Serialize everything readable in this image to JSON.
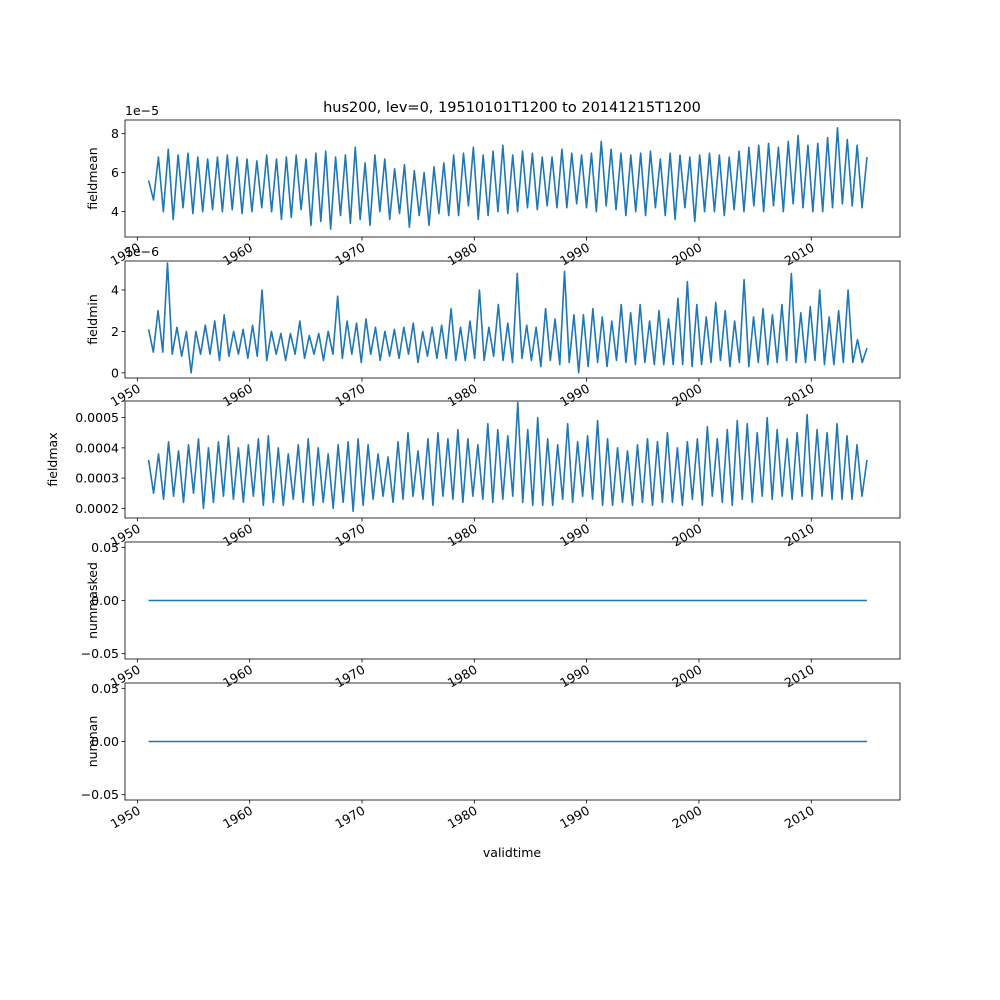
{
  "title": "hus200, lev=0, 19510101T1200 to 20141215T1200",
  "xlabel": "validtime",
  "colors": {
    "line": "#1f77b4",
    "axes": "#000000",
    "background": "#ffffff"
  },
  "chart_data": [
    {
      "type": "line",
      "ylabel": "fieldmean",
      "offset_text": "1e−5",
      "xlim": [
        1948.9,
        2017.9
      ],
      "ylim": [
        2.7,
        8.7
      ],
      "yticks": [
        4,
        6,
        8
      ],
      "yticklabels": [
        "4",
        "6",
        "8"
      ],
      "xticks": [
        1950,
        1960,
        1970,
        1980,
        1990,
        2000,
        2010
      ],
      "xticklabels": [
        "1950",
        "1960",
        "1970",
        "1980",
        "1990",
        "2000",
        "2010"
      ],
      "series": [
        {
          "x_range": [
            1951.0,
            2014.96
          ],
          "y": [
            5.6,
            4.6,
            6.8,
            4.0,
            7.2,
            3.6,
            6.9,
            4.2,
            7.0,
            3.9,
            6.8,
            4.0,
            6.7,
            4.1,
            6.8,
            4.0,
            6.9,
            4.1,
            6.8,
            3.9,
            6.7,
            4.0,
            6.6,
            4.2,
            6.9,
            4.0,
            6.7,
            3.6,
            6.8,
            3.7,
            6.9,
            4.1,
            6.7,
            3.3,
            7.0,
            3.5,
            7.1,
            3.1,
            6.8,
            3.8,
            6.9,
            3.4,
            7.3,
            3.6,
            6.5,
            3.3,
            6.9,
            4.0,
            6.7,
            3.6,
            6.2,
            3.9,
            6.4,
            3.2,
            6.1,
            3.8,
            6.0,
            3.3,
            6.3,
            3.9,
            6.5,
            3.8,
            6.9,
            3.8,
            7.0,
            4.3,
            7.3,
            3.6,
            6.9,
            3.8,
            7.1,
            4.0,
            7.4,
            3.9,
            6.9,
            4.0,
            7.1,
            4.2,
            7.0,
            4.1,
            6.8,
            4.3,
            6.8,
            4.2,
            7.2,
            4.2,
            7.0,
            4.4,
            6.9,
            4.2,
            7.0,
            4.0,
            7.6,
            4.3,
            7.2,
            4.1,
            7.0,
            3.8,
            6.9,
            4.0,
            7.0,
            3.8,
            7.1,
            4.2,
            6.7,
            3.8,
            7.0,
            3.6,
            6.9,
            4.2,
            6.8,
            3.5,
            6.9,
            4.0,
            7.0,
            4.0,
            6.9,
            3.8,
            6.8,
            4.1,
            7.1,
            4.0,
            7.3,
            4.3,
            7.4,
            4.0,
            7.5,
            4.3,
            7.3,
            4.0,
            7.6,
            4.4,
            7.9,
            4.2,
            7.4,
            4.0,
            7.5,
            4.0,
            7.8,
            4.2,
            8.3,
            4.4,
            7.7,
            4.3,
            7.4,
            4.2,
            6.8
          ]
        }
      ]
    },
    {
      "type": "line",
      "ylabel": "fieldmin",
      "offset_text": "1e−6",
      "xlim": [
        1948.9,
        2017.9
      ],
      "ylim": [
        -0.25,
        5.4
      ],
      "yticks": [
        0,
        2,
        4
      ],
      "yticklabels": [
        "0",
        "2",
        "4"
      ],
      "xticks": [
        1950,
        1960,
        1970,
        1980,
        1990,
        2000,
        2010
      ],
      "xticklabels": [
        "1950",
        "1960",
        "1970",
        "1980",
        "1990",
        "2000",
        "2010"
      ],
      "series": [
        {
          "x_range": [
            1951.0,
            2014.96
          ],
          "y": [
            2.1,
            1.0,
            3.0,
            1.0,
            5.3,
            0.9,
            2.2,
            0.8,
            2.0,
            0.0,
            2.0,
            0.9,
            2.3,
            0.9,
            2.5,
            0.6,
            2.8,
            0.8,
            2.0,
            0.9,
            2.1,
            0.7,
            2.3,
            0.8,
            4.0,
            0.6,
            2.0,
            0.9,
            1.9,
            0.6,
            1.9,
            0.9,
            2.5,
            0.7,
            1.8,
            0.9,
            1.9,
            0.6,
            2.0,
            0.9,
            3.7,
            0.7,
            2.5,
            0.9,
            2.4,
            0.5,
            2.6,
            0.9,
            2.2,
            0.6,
            2.0,
            0.8,
            2.1,
            0.7,
            2.2,
            0.9,
            2.4,
            0.5,
            2.0,
            0.8,
            2.2,
            0.7,
            2.3,
            0.7,
            3.1,
            0.6,
            2.2,
            0.6,
            2.5,
            0.7,
            4.0,
            0.6,
            2.2,
            0.8,
            3.3,
            0.6,
            2.4,
            0.5,
            4.8,
            0.7,
            2.3,
            0.6,
            2.2,
            0.3,
            3.1,
            0.6,
            2.6,
            0.4,
            4.9,
            0.5,
            2.8,
            0.0,
            2.8,
            0.3,
            3.1,
            0.5,
            2.7,
            0.3,
            2.5,
            0.6,
            3.3,
            0.5,
            2.9,
            0.4,
            3.3,
            0.5,
            2.5,
            0.4,
            3.0,
            0.4,
            2.6,
            0.4,
            3.6,
            0.4,
            4.4,
            0.3,
            3.3,
            0.4,
            2.7,
            0.5,
            3.4,
            0.6,
            3.0,
            0.3,
            2.5,
            0.5,
            4.5,
            0.3,
            2.7,
            0.5,
            3.1,
            0.4,
            2.8,
            0.5,
            3.3,
            0.6,
            4.8,
            0.5,
            2.9,
            0.5,
            3.2,
            0.6,
            4.0,
            0.4,
            2.7,
            0.4,
            3.0,
            0.5,
            4.0,
            0.5,
            1.6,
            0.5,
            1.2
          ]
        }
      ]
    },
    {
      "type": "line",
      "ylabel": "fieldmax",
      "offset_text": "",
      "xlim": [
        1948.9,
        2017.9
      ],
      "ylim": [
        0.000168,
        0.000555
      ],
      "yticks": [
        0.0002,
        0.0003,
        0.0004,
        0.0005
      ],
      "yticklabels": [
        "0.0002",
        "0.0003",
        "0.0004",
        "0.0005"
      ],
      "xticks": [
        1950,
        1960,
        1970,
        1980,
        1990,
        2000,
        2010
      ],
      "xticklabels": [
        "1950",
        "1960",
        "1970",
        "1980",
        "1990",
        "2000",
        "2010"
      ],
      "series": [
        {
          "x_range": [
            1951.0,
            2014.96
          ],
          "y": [
            0.00036,
            0.00025,
            0.00038,
            0.00023,
            0.00042,
            0.00024,
            0.00039,
            0.00022,
            0.00041,
            0.00025,
            0.00043,
            0.0002,
            0.0004,
            0.00022,
            0.00042,
            0.00024,
            0.00044,
            0.00023,
            0.0004,
            0.00022,
            0.00041,
            0.00024,
            0.00043,
            0.00021,
            0.00044,
            0.00022,
            0.0004,
            0.00021,
            0.00038,
            0.00023,
            0.00041,
            0.00022,
            0.00043,
            0.00021,
            0.0004,
            0.00022,
            0.00038,
            0.0002,
            0.00041,
            0.00022,
            0.00042,
            0.00019,
            0.00043,
            0.00021,
            0.00041,
            0.00023,
            0.00038,
            0.00024,
            0.00037,
            0.00022,
            0.00042,
            0.00023,
            0.00045,
            0.00024,
            0.00039,
            0.00023,
            0.00043,
            0.00021,
            0.00045,
            0.00024,
            0.00043,
            0.00023,
            0.00046,
            0.00022,
            0.00043,
            0.00024,
            0.00041,
            0.00023,
            0.00048,
            0.00022,
            0.00046,
            0.00023,
            0.00044,
            0.00024,
            0.00055,
            0.00022,
            0.00046,
            0.00021,
            0.0005,
            0.00021,
            0.00043,
            0.00021,
            0.00041,
            0.00023,
            0.00048,
            0.00022,
            0.00042,
            0.00024,
            0.00044,
            0.00023,
            0.00049,
            0.00021,
            0.00043,
            0.00021,
            0.0004,
            0.00022,
            0.00039,
            0.00021,
            0.00041,
            0.00022,
            0.00043,
            0.00021,
            0.00042,
            0.00022,
            0.00045,
            0.00022,
            0.0004,
            0.00021,
            0.00042,
            0.00023,
            0.00043,
            0.00021,
            0.00047,
            0.00024,
            0.00043,
            0.00022,
            0.00046,
            0.00021,
            0.00049,
            0.00023,
            0.00048,
            0.00022,
            0.00045,
            0.00024,
            0.0005,
            0.00023,
            0.00046,
            0.00024,
            0.00043,
            0.00023,
            0.00045,
            0.00024,
            0.00051,
            0.00023,
            0.00046,
            0.00024,
            0.00045,
            0.00023,
            0.00048,
            0.00023,
            0.00044,
            0.00023,
            0.00041,
            0.00024,
            0.00036
          ]
        }
      ]
    },
    {
      "type": "line",
      "ylabel": "nummasked",
      "offset_text": "",
      "xlim": [
        1948.9,
        2017.9
      ],
      "ylim": [
        -0.055,
        0.055
      ],
      "yticks": [
        -0.05,
        0.0,
        0.05
      ],
      "yticklabels": [
        "−0.05",
        "0.00",
        "0.05"
      ],
      "xticks": [
        1950,
        1960,
        1970,
        1980,
        1990,
        2000,
        2010
      ],
      "xticklabels": [
        "1950",
        "1960",
        "1970",
        "1980",
        "1990",
        "2000",
        "2010"
      ],
      "series": [
        {
          "x_range": [
            1951.0,
            2014.96
          ],
          "y": [
            0,
            0
          ]
        }
      ]
    },
    {
      "type": "line",
      "ylabel": "numnan",
      "offset_text": "",
      "xlim": [
        1948.9,
        2017.9
      ],
      "ylim": [
        -0.055,
        0.055
      ],
      "yticks": [
        -0.05,
        0.0,
        0.05
      ],
      "yticklabels": [
        "−0.05",
        "0.00",
        "0.05"
      ],
      "xticks": [
        1950,
        1960,
        1970,
        1980,
        1990,
        2000,
        2010
      ],
      "xticklabels": [
        "1950",
        "1960",
        "1970",
        "1980",
        "1990",
        "2000",
        "2010"
      ],
      "series": [
        {
          "x_range": [
            1951.0,
            2014.96
          ],
          "y": [
            0,
            0
          ]
        }
      ]
    }
  ]
}
